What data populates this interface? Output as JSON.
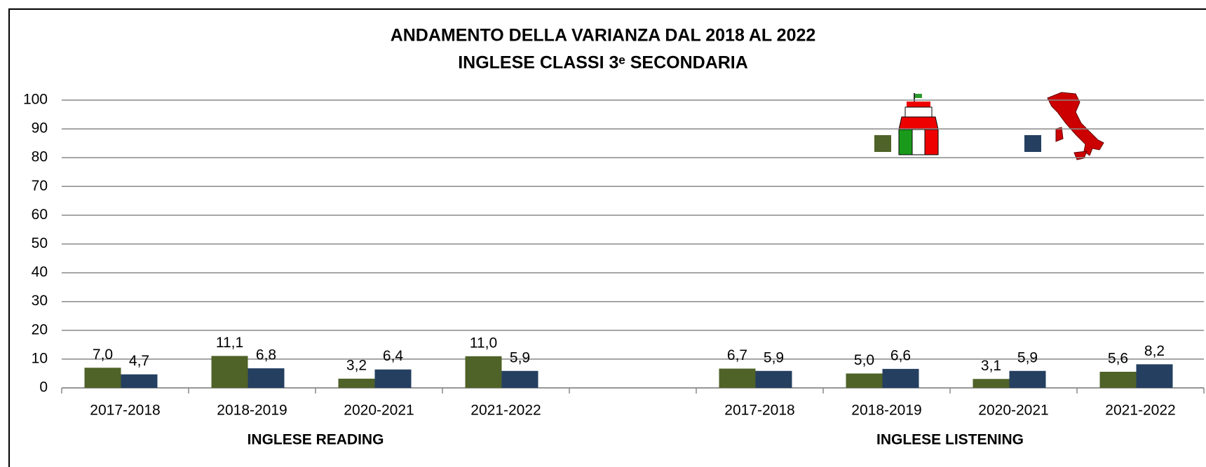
{
  "chart_data": {
    "type": "bar",
    "title": "ANDAMENTO DELLA VARIANZA DAL 2018 AL 2022",
    "subtitle": "INGLESE CLASSI 3ᵉ SECONDARIA",
    "categories": [
      "2017-2018",
      "2018-2019",
      "2020-2021",
      "2021-2022",
      null,
      "2017-2018",
      "2018-2019",
      "2020-2021",
      "2021-2022"
    ],
    "group_labels": [
      "INGLESE READING",
      "INGLESE LISTENING"
    ],
    "series": [
      {
        "color": "#4f6228",
        "values": [
          7.0,
          11.1,
          3.2,
          11.0,
          null,
          6.7,
          5.0,
          3.1,
          5.6
        ],
        "value_labels": [
          "7,0",
          "11,1",
          "3,2",
          "11,0",
          null,
          "6,7",
          "5,0",
          "3,1",
          "5,6"
        ]
      },
      {
        "color": "#243f60",
        "values": [
          4.7,
          6.8,
          6.4,
          5.9,
          null,
          5.9,
          6.6,
          5.9,
          8.2
        ],
        "value_labels": [
          "4,7",
          "6,8",
          "6,4",
          "5,9",
          null,
          "5,9",
          "6,6",
          "5,9",
          "8,2"
        ]
      }
    ],
    "ylim": [
      0,
      100
    ],
    "yticks": [
      0,
      10,
      20,
      30,
      40,
      50,
      60,
      70,
      80,
      90,
      100
    ],
    "grid": true
  }
}
